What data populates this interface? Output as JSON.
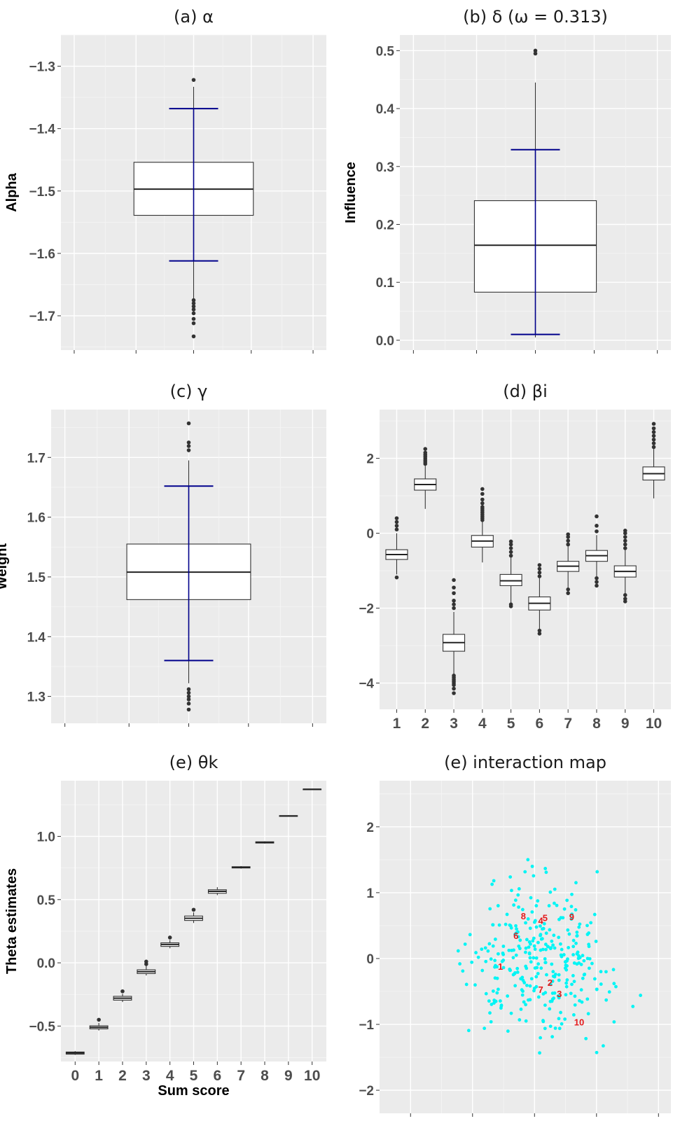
{
  "chart_data": [
    {
      "id": "a",
      "type": "boxplot",
      "title": "(a) α",
      "ylabel": "Alpha",
      "xlabel": "",
      "ylim": [
        -1.755,
        -1.25
      ],
      "yticks": [
        -1.7,
        -1.6,
        -1.5,
        -1.4,
        -1.3
      ],
      "ytick_labels": [
        "−1.7",
        "−1.6",
        "−1.5",
        "−1.4",
        "−1.3"
      ],
      "grid": true,
      "boxes": [
        {
          "q1": -1.539,
          "median": -1.497,
          "q3": -1.454,
          "whisker_low": -1.674,
          "whisker_high": -1.333,
          "outliers_low": [
            -1.675,
            -1.68,
            -1.685,
            -1.69,
            -1.696,
            -1.705,
            -1.712,
            -1.733
          ],
          "outliers_high": [
            -1.322
          ],
          "interval": [
            -1.612,
            -1.368
          ]
        }
      ]
    },
    {
      "id": "b",
      "type": "boxplot",
      "title": "(b) δ (ω = 0.313)",
      "ylabel": "Influence",
      "xlabel": "",
      "ylim": [
        -0.017,
        0.527
      ],
      "yticks": [
        0.0,
        0.1,
        0.2,
        0.3,
        0.4,
        0.5
      ],
      "ytick_labels": [
        "0.0",
        "0.1",
        "0.2",
        "0.3",
        "0.4",
        "0.5"
      ],
      "grid": true,
      "boxes": [
        {
          "q1": 0.083,
          "median": 0.164,
          "q3": 0.241,
          "whisker_low": 0.005,
          "whisker_high": 0.445,
          "outliers_low": [],
          "outliers_high": [
            0.495,
            0.5
          ],
          "interval": [
            0.01,
            0.329
          ]
        }
      ]
    },
    {
      "id": "c",
      "type": "boxplot",
      "title": "(c) γ",
      "ylabel": "Weight",
      "xlabel": "",
      "ylim": [
        1.255,
        1.78
      ],
      "yticks": [
        1.3,
        1.4,
        1.5,
        1.6,
        1.7
      ],
      "ytick_labels": [
        "1.3",
        "1.4",
        "1.5",
        "1.6",
        "1.7"
      ],
      "grid": true,
      "boxes": [
        {
          "q1": 1.462,
          "median": 1.508,
          "q3": 1.555,
          "whisker_low": 1.322,
          "whisker_high": 1.695,
          "outliers_low": [
            1.312,
            1.306,
            1.3,
            1.295,
            1.288,
            1.278
          ],
          "outliers_high": [
            1.712,
            1.719,
            1.725,
            1.757
          ],
          "interval": [
            1.36,
            1.652
          ]
        }
      ]
    },
    {
      "id": "d",
      "type": "boxplot",
      "title": "(d) βi",
      "ylabel": "",
      "xlabel": "",
      "ylim": [
        -4.7,
        3.3
      ],
      "yticks": [
        -4,
        -2,
        0,
        2
      ],
      "ytick_labels": [
        "−4",
        "−2",
        "0",
        "2"
      ],
      "categories": [
        "1",
        "2",
        "3",
        "4",
        "5",
        "6",
        "7",
        "8",
        "9",
        "10"
      ],
      "grid": true,
      "boxes": [
        {
          "q1": -0.7,
          "median": -0.57,
          "q3": -0.44,
          "whisker_low": -1.1,
          "whisker_high": 0.0,
          "outliers_low": [
            -1.18
          ],
          "outliers_high": [
            0.1,
            0.2,
            0.3,
            0.4
          ]
        },
        {
          "q1": 1.15,
          "median": 1.3,
          "q3": 1.45,
          "whisker_low": 0.65,
          "whisker_high": 1.8,
          "outliers_low": [],
          "outliers_high": [
            1.85,
            1.9,
            1.95,
            2.0,
            2.05,
            2.1,
            2.15,
            2.25
          ]
        },
        {
          "q1": -3.15,
          "median": -2.92,
          "q3": -2.7,
          "whisker_low": -3.75,
          "whisker_high": -2.1,
          "outliers_low": [
            -3.8,
            -3.85,
            -3.9,
            -3.95,
            -4.0,
            -4.05,
            -4.15,
            -4.27
          ],
          "outliers_high": [
            -2.0,
            -1.9,
            -1.8,
            -1.6,
            -1.45,
            -1.25
          ]
        },
        {
          "q1": -0.37,
          "median": -0.21,
          "q3": -0.06,
          "whisker_low": -0.78,
          "whisker_high": 0.3,
          "outliers_low": [],
          "outliers_high": [
            0.35,
            0.4,
            0.45,
            0.5,
            0.55,
            0.6,
            0.65,
            0.7,
            0.8,
            0.9,
            1.05,
            1.18
          ]
        },
        {
          "q1": -1.4,
          "median": -1.27,
          "q3": -1.1,
          "whisker_low": -1.85,
          "whisker_high": -0.65,
          "outliers_low": [
            -1.9,
            -1.95
          ],
          "outliers_high": [
            -0.6,
            -0.5,
            -0.4,
            -0.3,
            -0.22
          ]
        },
        {
          "q1": -2.05,
          "median": -1.87,
          "q3": -1.7,
          "whisker_low": -2.55,
          "whisker_high": -1.2,
          "outliers_low": [
            -2.6,
            -2.68
          ],
          "outliers_high": [
            -1.15,
            -1.05,
            -0.95,
            -0.85
          ]
        },
        {
          "q1": -1.02,
          "median": -0.88,
          "q3": -0.75,
          "whisker_low": -1.45,
          "whisker_high": -0.35,
          "outliers_low": [
            -1.5,
            -1.6
          ],
          "outliers_high": [
            -0.3,
            -0.2,
            -0.1,
            -0.03
          ]
        },
        {
          "q1": -0.75,
          "median": -0.6,
          "q3": -0.46,
          "whisker_low": -1.15,
          "whisker_high": -0.05,
          "outliers_low": [
            -1.2,
            -1.3,
            -1.4
          ],
          "outliers_high": [
            0.05,
            0.2,
            0.45
          ]
        },
        {
          "q1": -1.17,
          "median": -1.02,
          "q3": -0.87,
          "whisker_low": -1.6,
          "whisker_high": -0.45,
          "outliers_low": [
            -1.65,
            -1.75,
            -1.82
          ],
          "outliers_high": [
            -0.4,
            -0.3,
            -0.2,
            -0.1,
            0.0,
            0.07
          ]
        },
        {
          "q1": 1.42,
          "median": 1.59,
          "q3": 1.77,
          "whisker_low": 0.93,
          "whisker_high": 2.25,
          "outliers_low": [],
          "outliers_high": [
            2.3,
            2.4,
            2.5,
            2.6,
            2.7,
            2.8,
            2.92
          ]
        }
      ]
    },
    {
      "id": "e",
      "type": "boxplot",
      "title": "(e) θk",
      "ylabel": "Theta estimates",
      "xlabel": "Sum score",
      "ylim": [
        -0.78,
        1.44
      ],
      "yticks": [
        -0.5,
        0.0,
        0.5,
        1.0
      ],
      "ytick_labels": [
        "−0.5",
        "0.0",
        "0.5",
        "1.0"
      ],
      "categories": [
        "0",
        "1",
        "2",
        "3",
        "4",
        "5",
        "6",
        "7",
        "8",
        "9",
        "10"
      ],
      "grid": true,
      "boxes": [
        {
          "q1": -0.722,
          "median": -0.713,
          "q3": -0.705,
          "whisker_low": -0.728,
          "whisker_high": -0.698,
          "outliers_low": [],
          "outliers_high": []
        },
        {
          "q1": -0.522,
          "median": -0.51,
          "q3": -0.498,
          "whisker_low": -0.535,
          "whisker_high": -0.475,
          "outliers_low": [],
          "outliers_high": [
            -0.45
          ]
        },
        {
          "q1": -0.295,
          "median": -0.28,
          "q3": -0.265,
          "whisker_low": -0.31,
          "whisker_high": -0.245,
          "outliers_low": [],
          "outliers_high": [
            -0.225
          ]
        },
        {
          "q1": -0.085,
          "median": -0.07,
          "q3": -0.055,
          "whisker_low": -0.1,
          "whisker_high": -0.025,
          "outliers_low": [],
          "outliers_high": [
            -0.01,
            0.01
          ]
        },
        {
          "q1": 0.13,
          "median": 0.145,
          "q3": 0.158,
          "whisker_low": 0.115,
          "whisker_high": 0.18,
          "outliers_low": [],
          "outliers_high": [
            0.2
          ]
        },
        {
          "q1": 0.335,
          "median": 0.352,
          "q3": 0.37,
          "whisker_low": 0.315,
          "whisker_high": 0.4,
          "outliers_low": [],
          "outliers_high": [
            0.42
          ]
        },
        {
          "q1": 0.55,
          "median": 0.565,
          "q3": 0.578,
          "whisker_low": 0.535,
          "whisker_high": 0.598,
          "outliers_low": [],
          "outliers_high": []
        },
        {
          "q1": 0.75,
          "median": 0.755,
          "q3": 0.76,
          "whisker_low": 0.745,
          "whisker_high": 0.765,
          "outliers_low": [],
          "outliers_high": []
        },
        {
          "q1": 0.947,
          "median": 0.952,
          "q3": 0.957,
          "whisker_low": 0.943,
          "whisker_high": 0.961,
          "outliers_low": [],
          "outliers_high": []
        },
        {
          "q1": 1.158,
          "median": 1.161,
          "q3": 1.164,
          "whisker_low": 1.155,
          "whisker_high": 1.167,
          "outliers_low": [],
          "outliers_high": []
        },
        {
          "q1": 1.37,
          "median": 1.372,
          "q3": 1.374,
          "whisker_low": 1.368,
          "whisker_high": 1.376,
          "outliers_low": [],
          "outliers_high": []
        }
      ]
    },
    {
      "id": "f",
      "type": "scatter",
      "title": "(e) interaction map",
      "ylabel": "",
      "xlabel": "",
      "xlim": [
        -2.5,
        2.2
      ],
      "ylim": [
        -2.35,
        2.7
      ],
      "yticks": [
        -2,
        -1,
        0,
        1,
        2
      ],
      "ytick_labels": [
        "−2",
        "−1",
        "0",
        "1",
        "2"
      ],
      "xticks": [
        -2,
        -1,
        0,
        1,
        2
      ],
      "grid": true,
      "point_color": "#00f5f5",
      "label_color": "#e41a1c",
      "labels": [
        {
          "text": "1",
          "x": -0.55,
          "y": -0.12
        },
        {
          "text": "2",
          "x": 0.25,
          "y": -0.36
        },
        {
          "text": "3",
          "x": 0.4,
          "y": -0.53
        },
        {
          "text": "4",
          "x": 0.1,
          "y": 0.58
        },
        {
          "text": "5",
          "x": 0.17,
          "y": 0.62
        },
        {
          "text": "6",
          "x": -0.3,
          "y": 0.35
        },
        {
          "text": "7",
          "x": 0.1,
          "y": -0.47
        },
        {
          "text": "8",
          "x": -0.18,
          "y": 0.65
        },
        {
          "text": "9",
          "x": 0.6,
          "y": 0.64
        },
        {
          "text": "10",
          "x": 0.72,
          "y": -0.96
        }
      ],
      "n_points": 320
    }
  ]
}
